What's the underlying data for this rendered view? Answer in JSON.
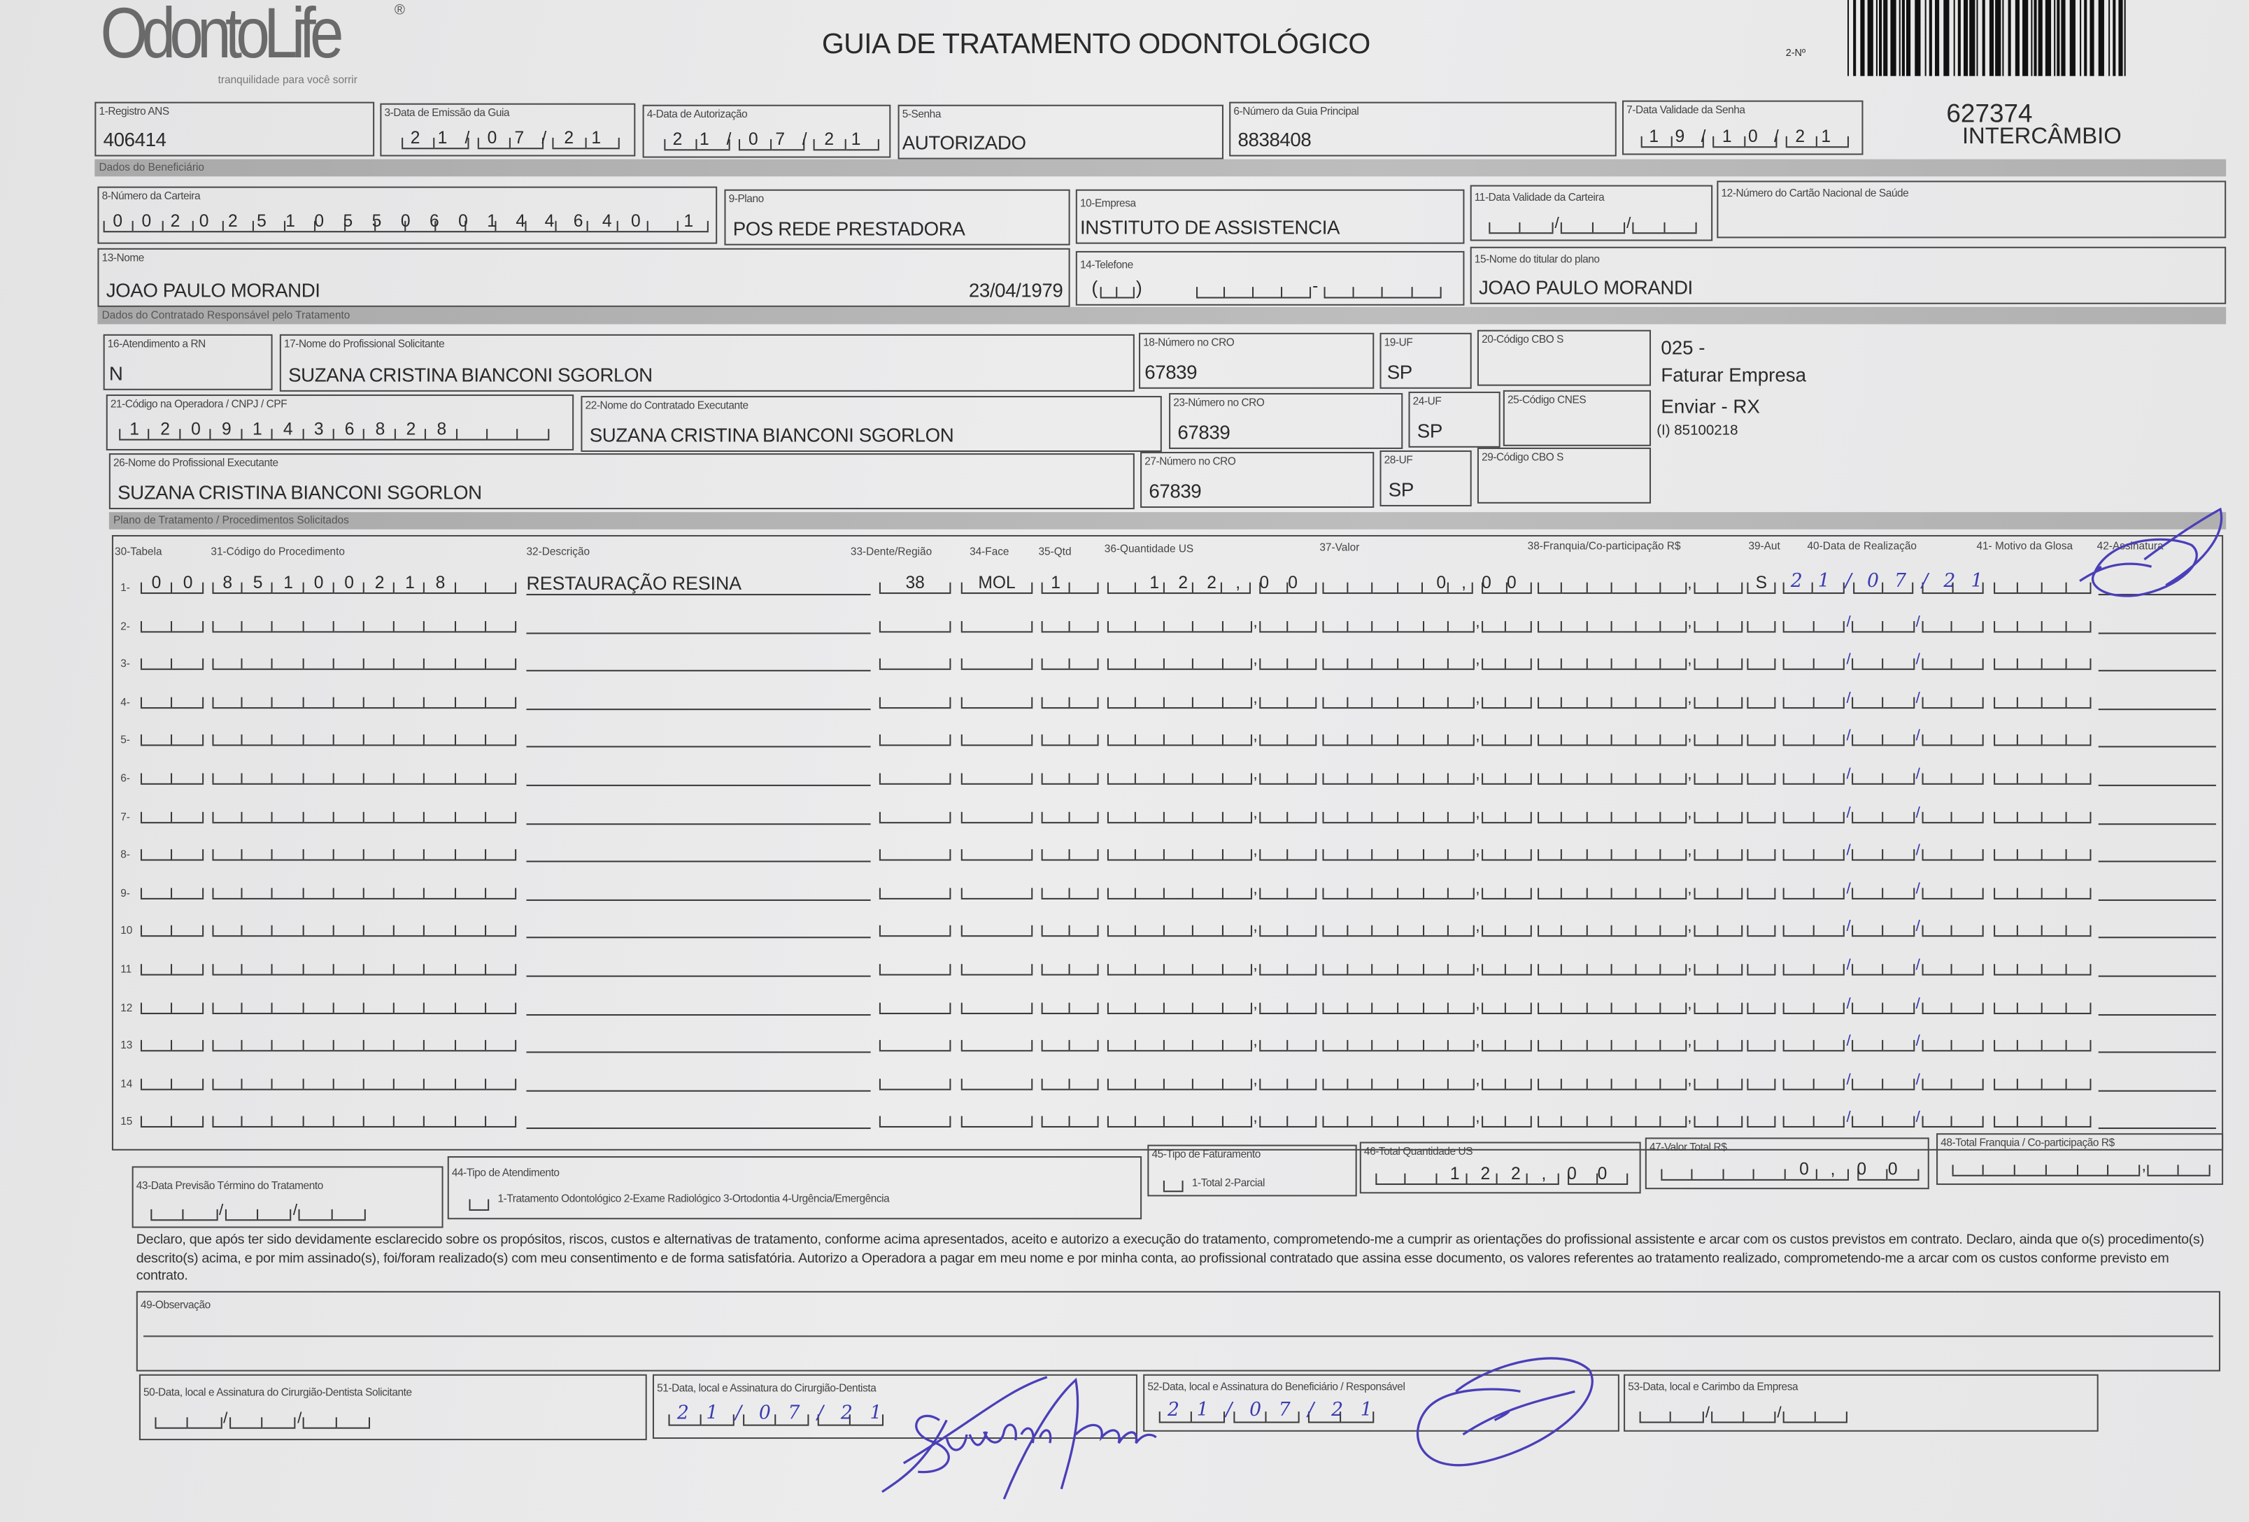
{
  "header": {
    "logo_text": "OdontoLife",
    "logo_registered": "®",
    "logo_tagline": "tranquilidade para você sorrir",
    "title": "GUIA DE TRATAMENTO ODONTOLÓGICO",
    "guide_no_label": "2-Nº",
    "guide_number": "627374",
    "guide_type": "INTERCÂMBIO"
  },
  "fields": {
    "registro_ans": {
      "label": "1-Registro ANS",
      "value": "406414"
    },
    "data_emissao": {
      "label": "3-Data de Emissão da Guia",
      "value": "21/07/21"
    },
    "data_autorizacao": {
      "label": "4-Data de Autorização",
      "value": "21/07/21"
    },
    "senha": {
      "label": "5-Senha",
      "value": "AUTORIZADO"
    },
    "guia_principal": {
      "label": "6-Número da Guia Principal",
      "value": "8838408"
    },
    "validade_senha": {
      "label": "7-Data Validade da Senha",
      "value": "19/10/21"
    },
    "numero_carteira": {
      "label": "8-Número da Carteira",
      "value": "0020251055060144640 1"
    },
    "plano": {
      "label": "9-Plano",
      "value": "POS REDE PRESTADORA"
    },
    "empresa": {
      "label": "10-Empresa",
      "value": "INSTITUTO DE ASSISTENCIA"
    },
    "validade_carteira": {
      "label": "11-Data Validade da Carteira",
      "value": "//"
    },
    "cartao_nacional": {
      "label": "12-Número do Cartão Nacional de Saúde",
      "value": ""
    },
    "nome": {
      "label": "13-Nome",
      "value": "JOAO PAULO MORANDI",
      "birthdate": "23/04/1979"
    },
    "telefone": {
      "label": "14-Telefone",
      "value": ""
    },
    "titular": {
      "label": "15-Nome do titular do plano",
      "value": "JOAO PAULO MORANDI"
    },
    "atendimento_rn": {
      "label": "16-Atendimento a RN",
      "value": "N"
    },
    "profissional_solicitante": {
      "label": "17-Nome do Profissional Solicitante",
      "value": "SUZANA CRISTINA BIANCONI SGORLON"
    },
    "cro_18": {
      "label": "18-Número no CRO",
      "value": "67839"
    },
    "uf_19": {
      "label": "19-UF",
      "value": "SP"
    },
    "cbo_20": {
      "label": "20-Código CBO S",
      "value": ""
    },
    "codigo_operadora": {
      "label": "21-Código na Operadora / CNPJ / CPF",
      "value": "12091436828"
    },
    "contratado_executante": {
      "label": "22-Nome do Contratado Executante",
      "value": "SUZANA CRISTINA BIANCONI SGORLON"
    },
    "cro_23": {
      "label": "23-Número no CRO",
      "value": "67839"
    },
    "uf_24": {
      "label": "24-UF",
      "value": "SP"
    },
    "cnes_25": {
      "label": "25-Código CNES",
      "value": ""
    },
    "profissional_executante": {
      "label": "26-Nome do Profissional Executante",
      "value": "SUZANA CRISTINA BIANCONI SGORLON"
    },
    "cro_27": {
      "label": "27-Número no CRO",
      "value": "67839"
    },
    "uf_28": {
      "label": "28-UF",
      "value": "SP"
    },
    "cbo_29": {
      "label": "29-Código CBO S",
      "value": ""
    }
  },
  "sections": {
    "beneficiario": "Dados do Beneficiário",
    "contratado": "Dados do Contratado Responsável pelo Tratamento",
    "plano": "Plano de Tratamento / Procedimentos Solicitados"
  },
  "notes": {
    "code": "025 -",
    "faturar": "Faturar Empresa",
    "enviar": "Enviar - RX",
    "ref": "(I) 85100218"
  },
  "procedures": {
    "headers": {
      "tabela": "30-Tabela",
      "codigo": "31-Código do Procedimento",
      "descricao": "32-Descrição",
      "dente": "33-Dente/Região",
      "face": "34-Face",
      "qtd": "35-Qtd",
      "us": "36-Quantidade US",
      "valor": "37-Valor",
      "franquia": "38-Franquia/Co-participação R$",
      "aut": "39-Aut",
      "data": "40-Data de Realização",
      "motivo": "41- Motivo da Glosa",
      "assinatura": "42-Assinatura"
    },
    "rows": [
      {
        "num": "1-",
        "tabela": "00",
        "codigo": "85100218",
        "descricao": "RESTAURAÇÃO RESINA",
        "dente": "38",
        "face": "MOL",
        "qtd": "1",
        "us": "122,00",
        "valor": "0,00",
        "franquia": "",
        "aut": "S",
        "data": "21/07/21",
        "motivo": ""
      },
      {
        "num": "2-"
      },
      {
        "num": "3-"
      },
      {
        "num": "4-"
      },
      {
        "num": "5-"
      },
      {
        "num": "6-"
      },
      {
        "num": "7-"
      },
      {
        "num": "8-"
      },
      {
        "num": "9-"
      },
      {
        "num": "10"
      },
      {
        "num": "11"
      },
      {
        "num": "12"
      },
      {
        "num": "13"
      },
      {
        "num": "14"
      },
      {
        "num": "15"
      }
    ]
  },
  "totals": {
    "previsao_termino": {
      "label": "43-Data Previsão Término do Tratamento",
      "value": "//"
    },
    "tipo_atendimento": {
      "label": "44-Tipo de Atendimento",
      "options": "1-Tratamento Odontológico  2-Exame Radiológico  3-Ortodontia  4-Urgência/Emergência"
    },
    "tipo_faturamento": {
      "label": "45-Tipo de Faturamento",
      "options": "1-Total  2-Parcial"
    },
    "total_us": {
      "label": "46-Total Quantidade US",
      "value": "122,00"
    },
    "valor_total": {
      "label": "47-Valor Total R$",
      "value": "0,00"
    },
    "total_franquia": {
      "label": "48-Total Franquia / Co-participação R$",
      "value": ""
    }
  },
  "declaration": "Declaro, que após ter sido devidamente esclarecido sobre os propósitos, riscos, custos e alternativas de tratamento, conforme acima apresentados, aceito e autorizo a execução do tratamento, comprometendo-me a cumprir as orientações do profissional assistente e arcar com os custos previstos em contrato. Declaro, ainda que o(s) procedimento(s) descrito(s) acima, e por mim assinado(s), foi/foram realizado(s) com meu consentimento e de forma satisfatória. Autorizo a Operadora a pagar em meu nome e por minha conta, ao profissional contratado que assina esse documento, os valores referentes ao tratamento realizado, comprometendo-me a arcar com os custos conforme previsto em contrato.",
  "observacao": {
    "label": "49-Observação",
    "value": ""
  },
  "signatures": {
    "solicitante": {
      "label": "50-Data, local e Assinatura do Cirurgião-Dentista Solicitante",
      "date": "//"
    },
    "cirurgiao": {
      "label": "51-Data, local e Assinatura do Cirurgião-Dentista",
      "date": "21/07/21",
      "signature_text": "Suzana Sgorlon"
    },
    "beneficiario": {
      "label": "52-Data, local e Assinatura do Beneficiário / Responsável",
      "date": "21/07/21"
    },
    "empresa": {
      "label": "53-Data, local e Carimbo da Empresa",
      "date": "//"
    }
  },
  "colors": {
    "ink": "#2a2a2a",
    "pen": "#3b3bb0",
    "paper": "#e9e9ea",
    "band": "#b3b3b3"
  }
}
